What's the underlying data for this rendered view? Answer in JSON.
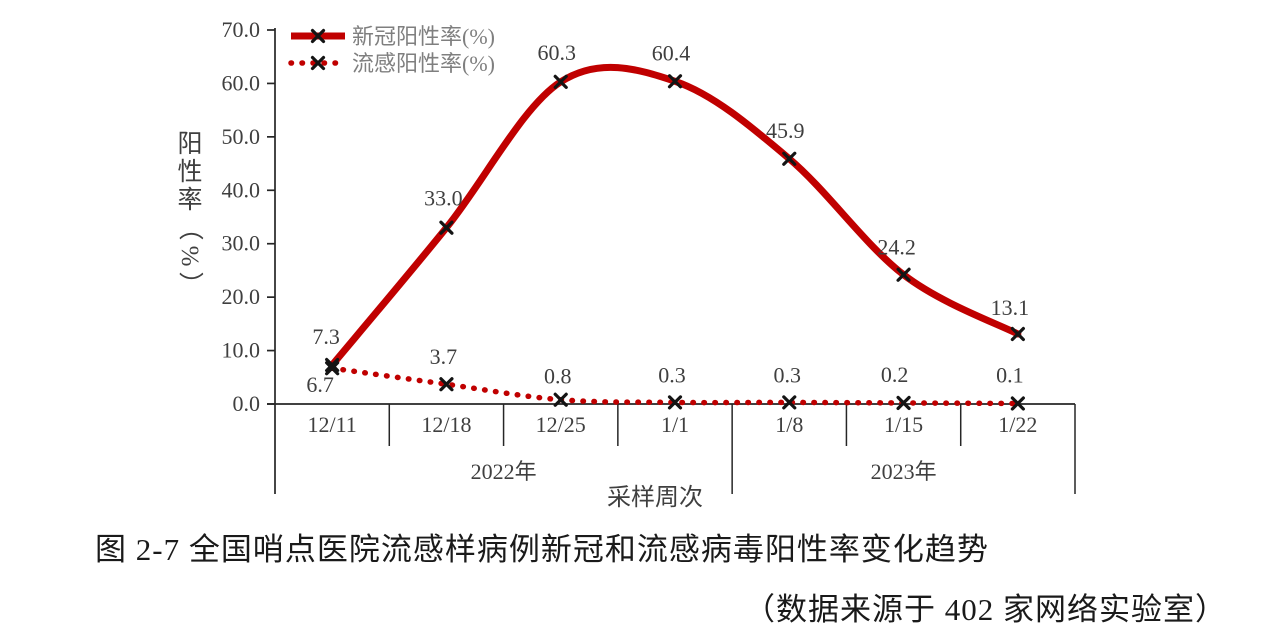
{
  "figure": {
    "caption_line1": "图 2-7 全国哨点医院流感样病例新冠和流感病毒阳性率变化趋势",
    "caption_line2": "（数据来源于 402 家网络实验室）"
  },
  "chart_data": {
    "type": "line",
    "title": "",
    "xlabel": "采样周次",
    "ylabel": "阳性率（%）",
    "categories": [
      "12/11",
      "12/18",
      "12/25",
      "1/1",
      "1/8",
      "1/15",
      "1/22"
    ],
    "year_groups": [
      {
        "label": "2022年",
        "start": 0,
        "end": 3
      },
      {
        "label": "2023年",
        "start": 4,
        "end": 6
      }
    ],
    "ylim": [
      0,
      70
    ],
    "ytick_labels": [
      "0.0",
      "10.0",
      "20.0",
      "30.0",
      "40.0",
      "50.0",
      "60.0",
      "70.0"
    ],
    "grid": false,
    "legend_position": "top-left-inside",
    "series": [
      {
        "name": "新冠阳性率(%)",
        "line_style": "solid",
        "marker": "x",
        "values": [
          7.3,
          33.0,
          60.3,
          60.4,
          45.9,
          24.2,
          13.1
        ],
        "labels": [
          "7.3",
          "33.0",
          "60.3",
          "60.4",
          "45.9",
          "24.2",
          "13.1"
        ]
      },
      {
        "name": "流感阳性率(%)",
        "line_style": "dotted",
        "marker": "x",
        "values": [
          6.7,
          3.7,
          0.8,
          0.3,
          0.3,
          0.2,
          0.1
        ],
        "labels": [
          "6.7",
          "3.7",
          "0.8",
          "0.3",
          "0.3",
          "0.2",
          "0.1"
        ]
      }
    ],
    "colors": {
      "series_line": "#c00000",
      "marker": "#141414",
      "data_label_text": "#3f3f3f",
      "axis_text": "#3f3f3f",
      "legend_text": "#7f7f7f",
      "axis_line": "#262626"
    }
  }
}
